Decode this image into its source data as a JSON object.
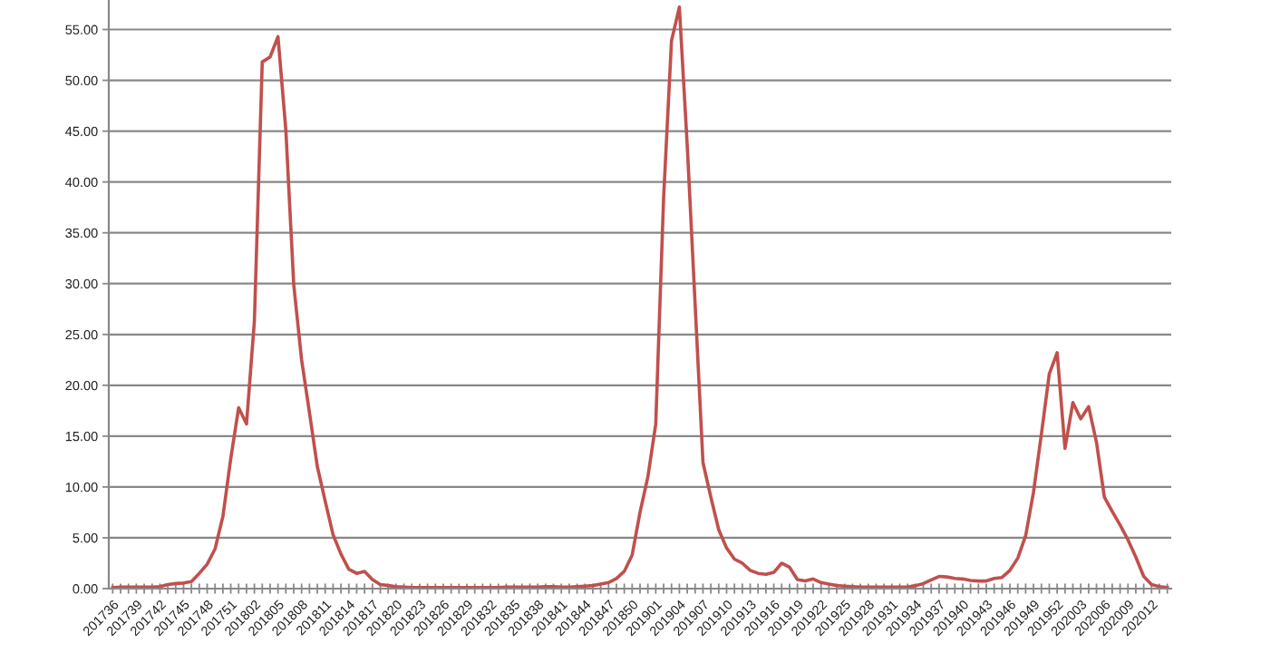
{
  "chart_data": {
    "type": "line",
    "categories": [
      "201736",
      null,
      null,
      "201739",
      null,
      null,
      "201742",
      null,
      null,
      "201745",
      null,
      null,
      "201748",
      null,
      null,
      "201751",
      null,
      null,
      "201802",
      null,
      null,
      "201805",
      null,
      null,
      "201808",
      null,
      null,
      "201811",
      null,
      null,
      "201814",
      null,
      null,
      "201817",
      null,
      null,
      "201820",
      null,
      null,
      "201823",
      null,
      null,
      "201826",
      null,
      null,
      "201829",
      null,
      null,
      "201832",
      null,
      null,
      "201835",
      null,
      null,
      "201838",
      null,
      null,
      "201841",
      null,
      null,
      "201844",
      null,
      null,
      "201847",
      null,
      null,
      "201850",
      null,
      null,
      "201901",
      null,
      null,
      "201904",
      null,
      null,
      "201907",
      null,
      null,
      "201910",
      null,
      null,
      "201913",
      null,
      null,
      "201916",
      null,
      null,
      "201919",
      null,
      null,
      "201922",
      null,
      null,
      "201925",
      null,
      null,
      "201928",
      null,
      null,
      "201931",
      null,
      null,
      "201934",
      null,
      null,
      "201937",
      null,
      null,
      "201940",
      null,
      null,
      "201943",
      null,
      null,
      "201946",
      null,
      null,
      "201949",
      null,
      null,
      "201952",
      null,
      null,
      "202003",
      null,
      null,
      "202006",
      null,
      null,
      "202009",
      null,
      null,
      "202012",
      null,
      null
    ],
    "series": [
      {
        "color": "#c0504d",
        "values": [
          0.1,
          0.15,
          0.15,
          0.15,
          0.15,
          0.15,
          0.2,
          0.4,
          0.5,
          0.55,
          0.7,
          1.5,
          2.4,
          3.9,
          7.1,
          12.8,
          17.8,
          16.2,
          26.3,
          51.8,
          52.3,
          54.3,
          45.1,
          29.9,
          22.5,
          17.3,
          12.0,
          8.6,
          5.3,
          3.4,
          1.9,
          1.5,
          1.7,
          0.9,
          0.4,
          0.3,
          0.2,
          0.15,
          0.1,
          0.1,
          0.1,
          0.1,
          0.1,
          0.1,
          0.1,
          0.1,
          0.1,
          0.1,
          0.1,
          0.1,
          0.15,
          0.15,
          0.15,
          0.15,
          0.15,
          0.2,
          0.2,
          0.15,
          0.15,
          0.2,
          0.25,
          0.3,
          0.45,
          0.6,
          1.0,
          1.7,
          3.3,
          7.5,
          11.0,
          16.2,
          38.5,
          53.9,
          57.2,
          43.6,
          28.0,
          12.4,
          9.0,
          5.8,
          4.0,
          2.9,
          2.5,
          1.8,
          1.5,
          1.4,
          1.6,
          2.5,
          2.1,
          0.9,
          0.75,
          0.95,
          0.6,
          0.45,
          0.3,
          0.25,
          0.2,
          0.15,
          0.15,
          0.15,
          0.15,
          0.15,
          0.15,
          0.15,
          0.3,
          0.5,
          0.85,
          1.2,
          1.15,
          1.0,
          0.95,
          0.8,
          0.75,
          0.75,
          1.0,
          1.1,
          1.8,
          3.0,
          5.2,
          9.5,
          15.2,
          21.1,
          23.2,
          13.8,
          18.3,
          16.7,
          17.9,
          14.4,
          9.0,
          7.6,
          6.25,
          4.8,
          3.1,
          1.2,
          0.4,
          0.2,
          0.1
        ]
      }
    ],
    "ylim": [
      0,
      57.9
    ],
    "yticks": [
      {
        "value": 0,
        "label": "0.00"
      },
      {
        "value": 5,
        "label": "5.00"
      },
      {
        "value": 10,
        "label": "10.00"
      },
      {
        "value": 15,
        "label": "15.00"
      },
      {
        "value": 20,
        "label": "20.00"
      },
      {
        "value": 25,
        "label": "25.00"
      },
      {
        "value": 30,
        "label": "30.00"
      },
      {
        "value": 35,
        "label": "35.00"
      },
      {
        "value": 40,
        "label": "40.00"
      },
      {
        "value": 45,
        "label": "45.00"
      },
      {
        "value": 50,
        "label": "50.00"
      },
      {
        "value": 55,
        "label": "55.00"
      }
    ],
    "grid": "y",
    "marker": "none",
    "line_style": "solid",
    "legend": false
  }
}
